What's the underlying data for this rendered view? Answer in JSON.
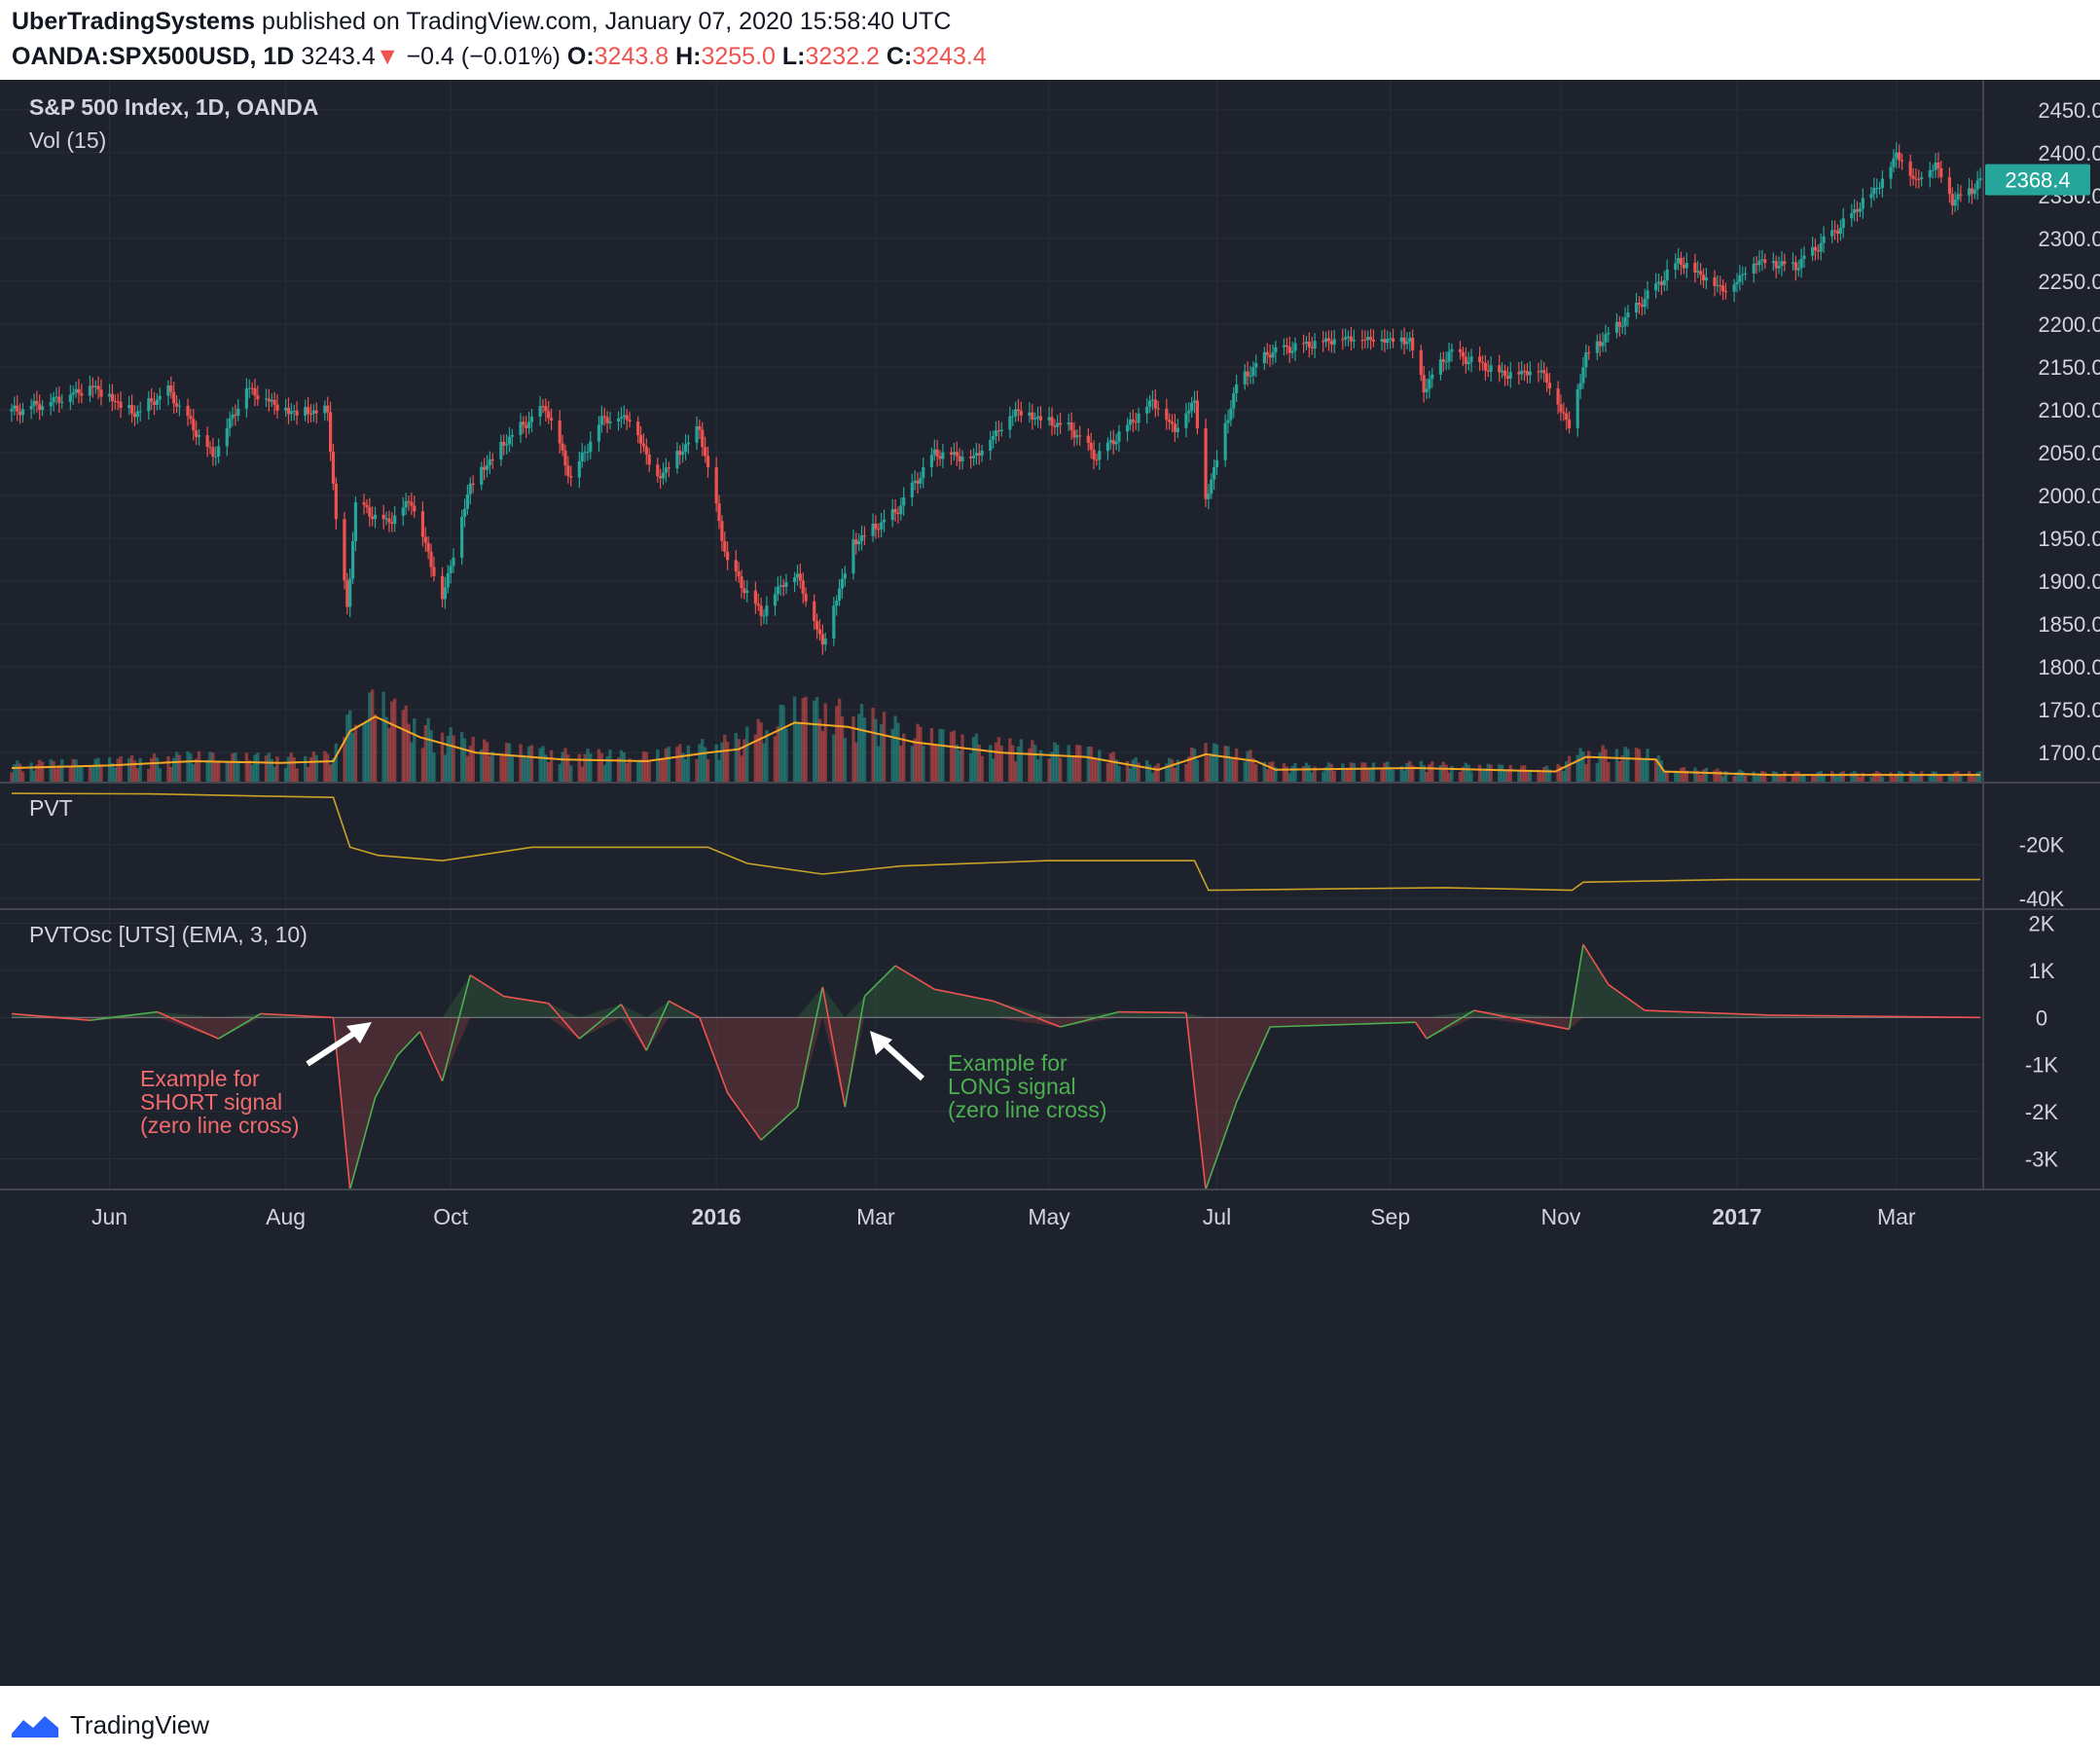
{
  "header": {
    "author": "UberTradingSystems",
    "published": "published on TradingView.com, January 07, 2020 15:58:40 UTC",
    "symbol": "OANDA:SPX500USD, 1D",
    "last": "3243.4",
    "down_arrow": "▼",
    "change": "−0.4 (−0.01%)",
    "o_label": "O:",
    "o_value": "3243.8",
    "h_label": "H:",
    "h_value": "3255.0",
    "l_label": "L:",
    "l_value": "3232.2",
    "c_label": "C:",
    "c_value": "3243.4"
  },
  "colors": {
    "bg": "#1e222d",
    "grid": "#2a2e39",
    "up": "#26a69a",
    "down": "#ef5350",
    "vol_ma": "#f5a623",
    "pvt": "#c9a227",
    "text": "#d1d4dc",
    "price_badge": "#26a69a"
  },
  "footer": {
    "logo": "tradingview-logo-icon",
    "brand": "TradingView"
  },
  "chart_data": {
    "type": "line",
    "panes": {
      "price": {
        "title": "S&P 500 Index, 1D, OANDA",
        "volume_label": "Vol (15)",
        "current_price_label": "2368.4",
        "y_ticks": [
          "2450.0",
          "2400.0",
          "2350.0",
          "2300.0",
          "2250.0",
          "2200.0",
          "2150.0",
          "2100.0",
          "2050.0",
          "2000.0",
          "1950.0",
          "1900.0",
          "1850.0",
          "1800.0",
          "1750.0",
          "1700.0"
        ],
        "ylim": [
          1665,
          2485
        ],
        "close_series": [
          [
            "2015-04-27",
            2098
          ],
          [
            "2015-05-11",
            2110
          ],
          [
            "2015-05-26",
            2128
          ],
          [
            "2015-06-10",
            2095
          ],
          [
            "2015-06-22",
            2122
          ],
          [
            "2015-07-08",
            2046
          ],
          [
            "2015-07-20",
            2126
          ],
          [
            "2015-08-04",
            2098
          ],
          [
            "2015-08-18",
            2098
          ],
          [
            "2015-08-21",
            1972
          ],
          [
            "2015-08-25",
            1868
          ],
          [
            "2015-08-28",
            1990
          ],
          [
            "2015-09-08",
            1968
          ],
          [
            "2015-09-17",
            1995
          ],
          [
            "2015-09-28",
            1880
          ],
          [
            "2015-10-08",
            2014
          ],
          [
            "2015-10-22",
            2068
          ],
          [
            "2015-11-04",
            2104
          ],
          [
            "2015-11-13",
            2020
          ],
          [
            "2015-11-24",
            2090
          ],
          [
            "2015-12-04",
            2092
          ],
          [
            "2015-12-14",
            2020
          ],
          [
            "2015-12-29",
            2078
          ],
          [
            "2016-01-08",
            1922
          ],
          [
            "2016-01-20",
            1862
          ],
          [
            "2016-01-28",
            1900
          ],
          [
            "2016-02-02",
            1908
          ],
          [
            "2016-02-11",
            1828
          ],
          [
            "2016-02-22",
            1945
          ],
          [
            "2016-03-08",
            1980
          ],
          [
            "2016-03-22",
            2050
          ],
          [
            "2016-04-05",
            2045
          ],
          [
            "2016-04-20",
            2100
          ],
          [
            "2016-05-10",
            2078
          ],
          [
            "2016-05-19",
            2045
          ],
          [
            "2016-06-08",
            2112
          ],
          [
            "2016-06-16",
            2078
          ],
          [
            "2016-06-23",
            2112
          ],
          [
            "2016-06-27",
            1995
          ],
          [
            "2016-07-08",
            2130
          ],
          [
            "2016-07-20",
            2168
          ],
          [
            "2016-08-15",
            2185
          ],
          [
            "2016-09-08",
            2182
          ],
          [
            "2016-09-13",
            2125
          ],
          [
            "2016-09-22",
            2168
          ],
          [
            "2016-10-12",
            2142
          ],
          [
            "2016-10-25",
            2148
          ],
          [
            "2016-11-04",
            2082
          ],
          [
            "2016-11-10",
            2165
          ],
          [
            "2016-11-25",
            2210
          ],
          [
            "2016-12-08",
            2255
          ],
          [
            "2016-12-13",
            2275
          ],
          [
            "2016-12-30",
            2240
          ],
          [
            "2017-01-10",
            2275
          ],
          [
            "2017-01-24",
            2268
          ],
          [
            "2017-02-10",
            2318
          ],
          [
            "2017-02-24",
            2368
          ],
          [
            "2017-03-01",
            2400
          ],
          [
            "2017-03-08",
            2368
          ],
          [
            "2017-03-15",
            2388
          ],
          [
            "2017-03-21",
            2345
          ],
          [
            "2017-03-28",
            2358
          ],
          [
            "2017-03-31",
            2368
          ]
        ],
        "volume_ma_series": [
          [
            "2015-04-27",
            1682
          ],
          [
            "2015-06-01",
            1685
          ],
          [
            "2015-07-01",
            1690
          ],
          [
            "2015-08-01",
            1688
          ],
          [
            "2015-08-20",
            1690
          ],
          [
            "2015-08-26",
            1725
          ],
          [
            "2015-09-04",
            1742
          ],
          [
            "2015-09-20",
            1718
          ],
          [
            "2015-10-10",
            1700
          ],
          [
            "2015-11-10",
            1692
          ],
          [
            "2015-12-10",
            1690
          ],
          [
            "2016-01-01",
            1700
          ],
          [
            "2016-01-12",
            1704
          ],
          [
            "2016-02-01",
            1735
          ],
          [
            "2016-02-20",
            1730
          ],
          [
            "2016-03-15",
            1712
          ],
          [
            "2016-04-15",
            1700
          ],
          [
            "2016-05-15",
            1695
          ],
          [
            "2016-06-10",
            1680
          ],
          [
            "2016-06-27",
            1698
          ],
          [
            "2016-07-15",
            1690
          ],
          [
            "2016-07-22",
            1680
          ],
          [
            "2016-09-10",
            1682
          ],
          [
            "2016-10-30",
            1678
          ],
          [
            "2016-11-10",
            1695
          ],
          [
            "2016-12-05",
            1692
          ],
          [
            "2016-12-08",
            1678
          ],
          [
            "2017-01-15",
            1674
          ],
          [
            "2017-03-31",
            1674
          ]
        ]
      },
      "pvt": {
        "title": "PVT",
        "y_ticks": [
          "-20K",
          "-40K"
        ],
        "ylim": [
          -44000,
          3000
        ],
        "series": [
          [
            "2015-04-27",
            -1000
          ],
          [
            "2015-06-15",
            -1200
          ],
          [
            "2015-08-20",
            -2500
          ],
          [
            "2015-08-26",
            -21000
          ],
          [
            "2015-09-05",
            -24000
          ],
          [
            "2015-09-28",
            -26000
          ],
          [
            "2015-10-30",
            -21000
          ],
          [
            "2016-01-01",
            -21000
          ],
          [
            "2016-01-15",
            -27000
          ],
          [
            "2016-02-11",
            -31000
          ],
          [
            "2016-03-10",
            -28000
          ],
          [
            "2016-05-01",
            -26000
          ],
          [
            "2016-06-23",
            -26000
          ],
          [
            "2016-06-28",
            -37000
          ],
          [
            "2016-09-20",
            -36000
          ],
          [
            "2016-11-05",
            -37000
          ],
          [
            "2016-11-09",
            -34000
          ],
          [
            "2017-01-01",
            -33000
          ],
          [
            "2017-03-31",
            -33000
          ]
        ]
      },
      "oscillator": {
        "title": "PVTOsc [UTS] (EMA, 3, 10)",
        "y_ticks": [
          "2K",
          "1K",
          "0",
          "-1K",
          "-2K",
          "-3K"
        ],
        "ylim": [
          -3650,
          2300
        ],
        "series": [
          [
            "2015-04-27",
            80
          ],
          [
            "2015-05-25",
            -60
          ],
          [
            "2015-06-18",
            120
          ],
          [
            "2015-07-10",
            -450
          ],
          [
            "2015-07-25",
            80
          ],
          [
            "2015-08-20",
            0
          ],
          [
            "2015-08-26",
            -3650
          ],
          [
            "2015-09-04",
            -1700
          ],
          [
            "2015-09-12",
            -800
          ],
          [
            "2015-09-20",
            -300
          ],
          [
            "2015-09-28",
            -1350
          ],
          [
            "2015-10-08",
            900
          ],
          [
            "2015-10-20",
            450
          ],
          [
            "2015-11-05",
            300
          ],
          [
            "2015-11-16",
            -450
          ],
          [
            "2015-12-01",
            280
          ],
          [
            "2015-12-10",
            -700
          ],
          [
            "2015-12-18",
            350
          ],
          [
            "2015-12-29",
            0
          ],
          [
            "2016-01-08",
            -1600
          ],
          [
            "2016-01-20",
            -2600
          ],
          [
            "2016-02-02",
            -1900
          ],
          [
            "2016-02-11",
            650
          ],
          [
            "2016-02-19",
            -1900
          ],
          [
            "2016-02-26",
            450
          ],
          [
            "2016-03-08",
            1100
          ],
          [
            "2016-03-22",
            600
          ],
          [
            "2016-04-12",
            350
          ],
          [
            "2016-05-06",
            -200
          ],
          [
            "2016-05-27",
            120
          ],
          [
            "2016-06-20",
            100
          ],
          [
            "2016-06-27",
            -3650
          ],
          [
            "2016-07-08",
            -1800
          ],
          [
            "2016-07-20",
            -200
          ],
          [
            "2016-09-10",
            -100
          ],
          [
            "2016-09-14",
            -450
          ],
          [
            "2016-10-01",
            150
          ],
          [
            "2016-11-04",
            -250
          ],
          [
            "2016-11-09",
            1550
          ],
          [
            "2016-11-18",
            700
          ],
          [
            "2016-12-01",
            150
          ],
          [
            "2017-01-15",
            50
          ],
          [
            "2017-03-31",
            0
          ]
        ]
      }
    },
    "x_ticks": [
      {
        "label": "Jun",
        "date": "2015-06-01",
        "bold": false
      },
      {
        "label": "Aug",
        "date": "2015-08-03",
        "bold": false
      },
      {
        "label": "Oct",
        "date": "2015-10-01",
        "bold": false
      },
      {
        "label": "2016",
        "date": "2016-01-04",
        "bold": true
      },
      {
        "label": "Mar",
        "date": "2016-03-01",
        "bold": false
      },
      {
        "label": "May",
        "date": "2016-05-02",
        "bold": false
      },
      {
        "label": "Jul",
        "date": "2016-07-01",
        "bold": false
      },
      {
        "label": "Sep",
        "date": "2016-09-01",
        "bold": false
      },
      {
        "label": "Nov",
        "date": "2016-11-01",
        "bold": false
      },
      {
        "label": "2017",
        "date": "2017-01-03",
        "bold": true
      },
      {
        "label": "Mar",
        "date": "2017-03-01",
        "bold": false
      }
    ],
    "annotations": {
      "short": [
        "Example for",
        "SHORT signal",
        "(zero line cross)"
      ],
      "long": [
        "Example for",
        "LONG signal",
        "(zero line cross)"
      ]
    }
  }
}
